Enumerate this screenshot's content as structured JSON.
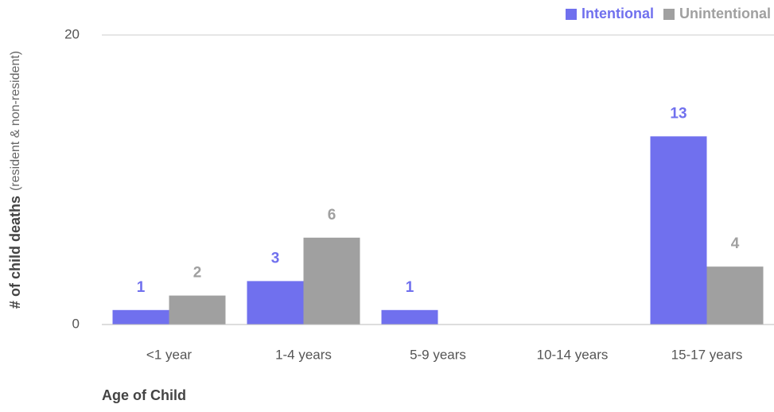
{
  "chart_data": {
    "type": "bar",
    "categories": [
      "<1 year",
      "1-4 years",
      "5-9 years",
      "10-14 years",
      "15-17 years"
    ],
    "series": [
      {
        "name": "Intentional",
        "color": "#7070ee",
        "values": [
          1,
          3,
          1,
          null,
          13
        ]
      },
      {
        "name": "Unintentional",
        "color": "#a0a0a0",
        "values": [
          2,
          6,
          null,
          null,
          4
        ]
      }
    ],
    "ylim": [
      0,
      20
    ],
    "yticks": [
      0,
      20
    ],
    "x_label": "Age of Child",
    "y_label": "# of child deaths",
    "y_label_note": "(resident & non-resident)",
    "grid": true,
    "legend": "top-right"
  }
}
